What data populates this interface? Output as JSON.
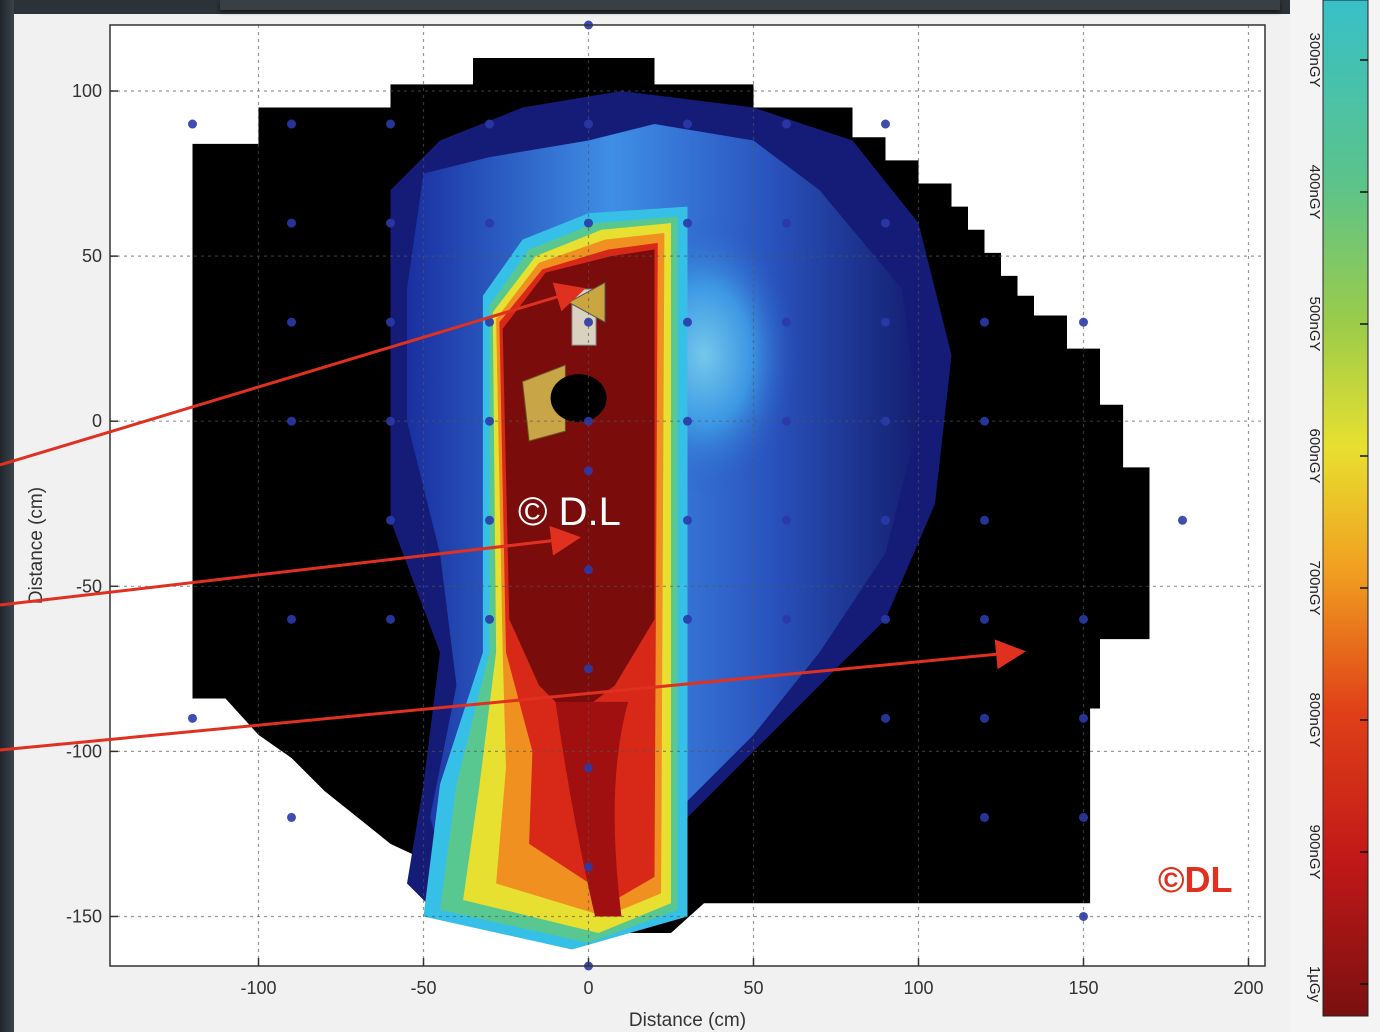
{
  "chart_data": {
    "type": "heatmap",
    "xlabel": "Distance (cm)",
    "ylabel": "Distance (cm)",
    "xlim": [
      -145,
      205
    ],
    "ylim": [
      -165,
      120
    ],
    "xticks": [
      -100,
      -50,
      0,
      50,
      100,
      150,
      200
    ],
    "yticks": [
      100,
      50,
      0,
      -50,
      -100,
      -150
    ],
    "xtick_labels": [
      "-100",
      "-50",
      "0",
      "50",
      "100",
      "150",
      "200"
    ],
    "ytick_labels": [
      "100",
      "50",
      "0",
      "-50",
      "-100",
      "-150"
    ],
    "grid": true,
    "colorbar": {
      "labels": [
        "300nGY",
        "400nGY",
        "500nGY",
        "600nGY",
        "700nGY",
        "800nGY",
        "900nGY",
        "1µGy"
      ],
      "colors": [
        "#38c0c8",
        "#5cc38a",
        "#9ccc4a",
        "#e8e030",
        "#f0a020",
        "#e04018",
        "#c01818",
        "#7a1010"
      ]
    },
    "regions": [
      {
        "level": "background",
        "color": "#000000"
      },
      {
        "level": "low",
        "color": "#1a2a8a"
      },
      {
        "level": "mid",
        "color": "#3a8ee0"
      },
      {
        "level": "high",
        "color": "#7a0c0c"
      }
    ],
    "measurement_points": [
      [
        -120,
        90
      ],
      [
        -90,
        90
      ],
      [
        -60,
        90
      ],
      [
        -30,
        90
      ],
      [
        0,
        90
      ],
      [
        30,
        90
      ],
      [
        60,
        90
      ],
      [
        90,
        90
      ],
      [
        -90,
        60
      ],
      [
        -60,
        60
      ],
      [
        -30,
        60
      ],
      [
        0,
        60
      ],
      [
        30,
        60
      ],
      [
        60,
        60
      ],
      [
        90,
        60
      ],
      [
        -90,
        30
      ],
      [
        -60,
        30
      ],
      [
        -30,
        30
      ],
      [
        0,
        30
      ],
      [
        30,
        30
      ],
      [
        60,
        30
      ],
      [
        90,
        30
      ],
      [
        120,
        30
      ],
      [
        150,
        30
      ],
      [
        -90,
        0
      ],
      [
        -60,
        0
      ],
      [
        -30,
        0
      ],
      [
        0,
        0
      ],
      [
        30,
        0
      ],
      [
        60,
        0
      ],
      [
        90,
        0
      ],
      [
        120,
        0
      ],
      [
        -60,
        -30
      ],
      [
        -30,
        -30
      ],
      [
        0,
        -15
      ],
      [
        30,
        -30
      ],
      [
        60,
        -30
      ],
      [
        90,
        -30
      ],
      [
        120,
        -30
      ],
      [
        180,
        -30
      ],
      [
        -90,
        -60
      ],
      [
        -60,
        -60
      ],
      [
        -30,
        -60
      ],
      [
        0,
        -45
      ],
      [
        30,
        -60
      ],
      [
        60,
        -60
      ],
      [
        90,
        -60
      ],
      [
        120,
        -60
      ],
      [
        150,
        -60
      ],
      [
        -120,
        -90
      ],
      [
        0,
        -75
      ],
      [
        90,
        -90
      ],
      [
        120,
        -90
      ],
      [
        150,
        -90
      ],
      [
        -90,
        -120
      ],
      [
        0,
        -105
      ],
      [
        120,
        -120
      ],
      [
        150,
        -120
      ],
      [
        0,
        -135
      ],
      [
        150,
        -150
      ],
      [
        0,
        -165
      ],
      [
        0,
        120
      ]
    ],
    "annotations": [
      "© D.L",
      "©DL"
    ]
  }
}
